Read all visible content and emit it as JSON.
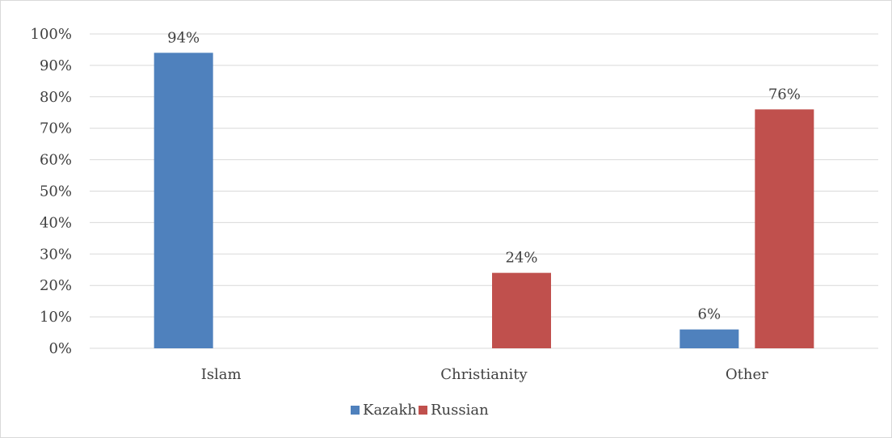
{
  "chart_data": {
    "type": "bar",
    "title": "",
    "xlabel": "",
    "ylabel": "",
    "categories": [
      "Islam",
      "Christianity",
      "Other"
    ],
    "series": [
      {
        "name": "Kazakh",
        "color": "#4f81bd",
        "values": [
          94,
          0,
          6
        ],
        "labels": [
          "94%",
          null,
          "6%"
        ]
      },
      {
        "name": "Russian",
        "color": "#c0504d",
        "values": [
          0,
          24,
          76
        ],
        "labels": [
          null,
          "24%",
          "76%"
        ]
      }
    ],
    "ylim": [
      0,
      100
    ],
    "yticks": [
      0,
      10,
      20,
      30,
      40,
      50,
      60,
      70,
      80,
      90,
      100
    ],
    "ytick_labels": [
      "0%",
      "10%",
      "20%",
      "30%",
      "40%",
      "50%",
      "60%",
      "70%",
      "80%",
      "90%",
      "100%"
    ],
    "grid": "horizontal",
    "legend_position": "bottom"
  }
}
